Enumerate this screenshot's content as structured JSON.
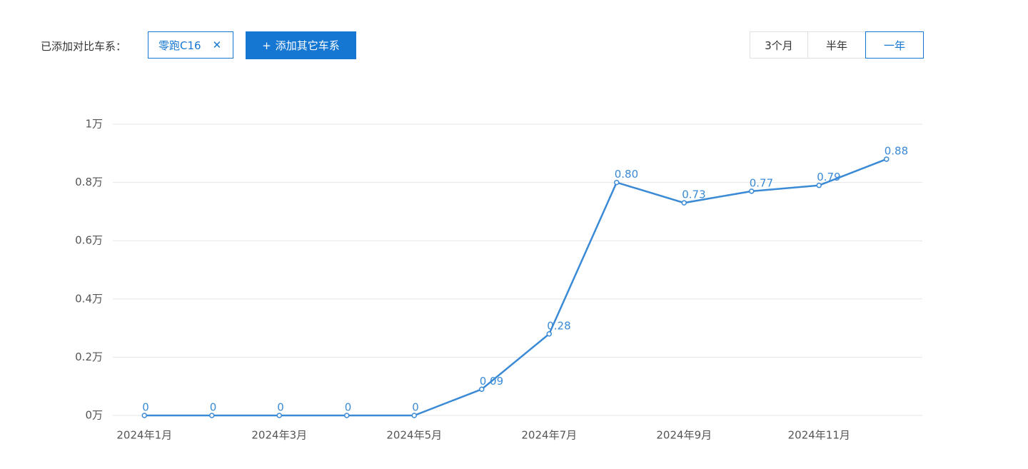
{
  "toolbar": {
    "label": "已添加对比车系：",
    "tag": "零跑C16",
    "add_button": "添加其它车系",
    "ranges": [
      {
        "label": "3个月",
        "selected": false
      },
      {
        "label": "半年",
        "selected": false
      },
      {
        "label": "一年",
        "selected": true
      }
    ]
  },
  "chart_data": {
    "type": "line",
    "categories": [
      "2024年1月",
      null,
      "2024年3月",
      null,
      "2024年5月",
      null,
      "2024年7月",
      null,
      "2024年9月",
      null,
      "2024年11月",
      null
    ],
    "values": [
      0,
      0,
      0,
      0,
      0,
      0.09,
      0.28,
      0.8,
      0.73,
      0.77,
      0.79,
      0.88
    ],
    "value_labels": [
      "0",
      "0",
      "0",
      "0",
      "0",
      "0.09",
      "0.28",
      "0.80",
      "0.73",
      "0.77",
      "0.79",
      "0.88"
    ],
    "color": "#3a8ad6",
    "ylim": [
      0,
      1
    ],
    "yticks": [
      {
        "value": 0,
        "label": "0万"
      },
      {
        "value": 0.2,
        "label": "0.2万"
      },
      {
        "value": 0.4,
        "label": "0.4万"
      },
      {
        "value": 0.6,
        "label": "0.6万"
      },
      {
        "value": 0.8,
        "label": "0.8万"
      },
      {
        "value": 1,
        "label": "1万"
      }
    ],
    "grid": true
  }
}
